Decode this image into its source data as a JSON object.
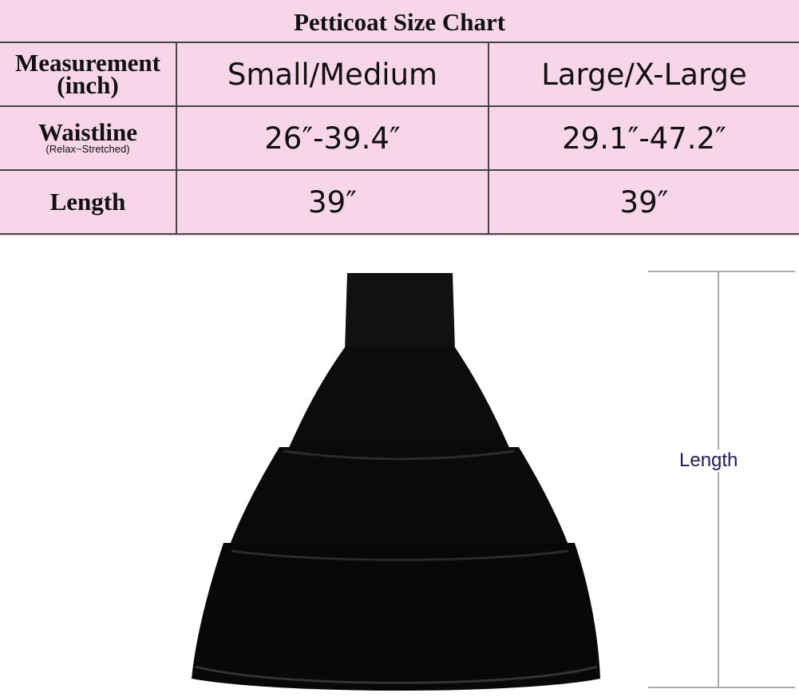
{
  "chart": {
    "title": "Petticoat Size Chart",
    "header": {
      "measurement": "Measurement",
      "unit": "(inch)",
      "columns": [
        "Small/Medium",
        "Large/X-Large"
      ]
    },
    "rows": [
      {
        "label": "Waistline",
        "note": "(Relax~Stretched)",
        "values": [
          "26″-39.4″",
          "29.1″-47.2″"
        ]
      },
      {
        "label": "Length",
        "values": [
          "39″",
          "39″"
        ]
      }
    ]
  },
  "diagram": {
    "length_label": "Length"
  },
  "colors": {
    "background": "#f8d6ea",
    "skirt": "#0a0a0a",
    "label": "#1e1c55"
  }
}
